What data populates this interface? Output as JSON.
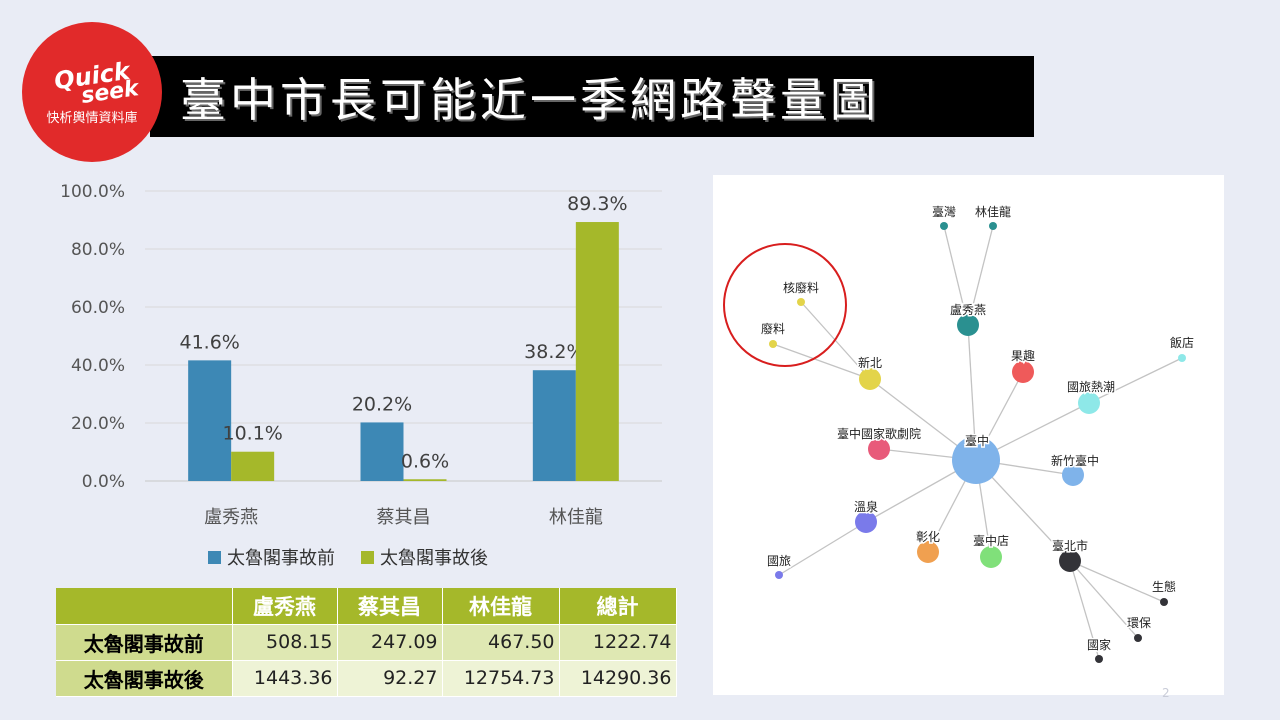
{
  "logo": {
    "brand_line1": "Quick",
    "brand_line2": "seek",
    "slogan": "快析輿情資料庫"
  },
  "title": "臺中市長可能近一季網路聲量圖",
  "colors": {
    "series_before": "#3d88b5",
    "series_after": "#a5b82a",
    "title_bg": "#000000",
    "logo_red": "#e12a2a"
  },
  "chart_data": {
    "type": "bar",
    "categories": [
      "盧秀燕",
      "蔡其昌",
      "林佳龍"
    ],
    "series": [
      {
        "name": "太魯閣事故前",
        "values": [
          41.6,
          20.2,
          38.2
        ],
        "labels": [
          "41.6%",
          "20.2%",
          "38.2%"
        ]
      },
      {
        "name": "太魯閣事故後",
        "values": [
          10.1,
          0.6,
          89.3
        ],
        "labels": [
          "10.1%",
          "0.6%",
          "89.3%"
        ]
      }
    ],
    "yticks": [
      "0.0%",
      "20.0%",
      "40.0%",
      "60.0%",
      "80.0%",
      "100.0%"
    ],
    "ylim": [
      0,
      100
    ],
    "grid": true,
    "legend_position": "bottom"
  },
  "table": {
    "corner": "",
    "headers": [
      "盧秀燕",
      "蔡其昌",
      "林佳龍",
      "總計"
    ],
    "rows": [
      {
        "label": "太魯閣事故前",
        "cells": [
          "508.15",
          "247.09",
          "467.50",
          "1222.74"
        ]
      },
      {
        "label": "太魯閣事故後",
        "cells": [
          "1443.36",
          "92.27",
          "12754.73",
          "14290.36"
        ]
      }
    ]
  },
  "network": {
    "nodes": [
      {
        "id": "center",
        "label": "臺中",
        "color": "#7fb3ea"
      },
      {
        "id": "luxiuyan",
        "label": "盧秀燕",
        "color": "#2a9090"
      },
      {
        "id": "taiwan",
        "label": "臺灣",
        "color": "#2a9090"
      },
      {
        "id": "linjialong",
        "label": "林佳龍",
        "color": "#2a9090"
      },
      {
        "id": "xinbei",
        "label": "新北",
        "color": "#e3d44a"
      },
      {
        "id": "hefeiliao",
        "label": "核廢料",
        "color": "#e3d44a"
      },
      {
        "id": "feiliao",
        "label": "廢料",
        "color": "#e3d44a"
      },
      {
        "id": "guoqu",
        "label": "果趣",
        "color": "#ef5a5a"
      },
      {
        "id": "fandian",
        "label": "飯店",
        "color": "#8ee8e8"
      },
      {
        "id": "guolu",
        "label": "國旅熱潮",
        "color": "#8ee8e8"
      },
      {
        "id": "opera",
        "label": "臺中國家歌劇院",
        "color": "#e85a7a"
      },
      {
        "id": "hsinchu",
        "label": "新竹臺中",
        "color": "#7fb3ea"
      },
      {
        "id": "wenquan",
        "label": "溫泉",
        "color": "#7a7aea"
      },
      {
        "id": "guolv",
        "label": "國旅",
        "color": "#7a7aea"
      },
      {
        "id": "changhua",
        "label": "彰化",
        "color": "#f0a050"
      },
      {
        "id": "tczdian",
        "label": "臺中店",
        "color": "#80e07a"
      },
      {
        "id": "taipei",
        "label": "臺北市",
        "color": "#333338"
      },
      {
        "id": "shengtai",
        "label": "生態",
        "color": "#333338"
      },
      {
        "id": "huanbao",
        "label": "環保",
        "color": "#333338"
      },
      {
        "id": "guojia",
        "label": "國家",
        "color": "#333338"
      }
    ],
    "highlight_color": "#d81e1e"
  },
  "page_number": "2"
}
